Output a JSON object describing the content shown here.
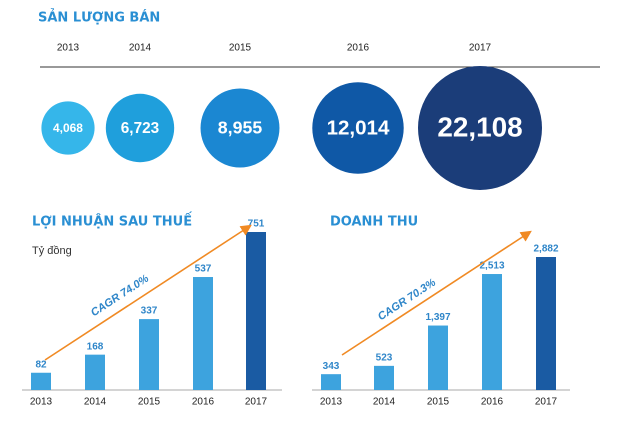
{
  "chart_data": [
    {
      "type": "bubble",
      "title": "SẢN LƯỢNG BÁN",
      "categories": [
        "2013",
        "2014",
        "2015",
        "2016",
        "2017"
      ],
      "values": [
        4068,
        6723,
        8955,
        12014,
        22108
      ],
      "value_labels": [
        "4,068",
        "6,723",
        "8,955",
        "12,014",
        "22,108"
      ],
      "colors": [
        "#35b6ea",
        "#1f9fdc",
        "#1b87d2",
        "#0f58a6",
        "#1b3d79"
      ]
    },
    {
      "type": "bar",
      "title": "LỢI NHUẬN SAU THUẾ",
      "subtitle": "Tỷ đồng",
      "annotation": "CAGR 74.0%",
      "categories": [
        "2013",
        "2014",
        "2015",
        "2016",
        "2017"
      ],
      "values": [
        82,
        168,
        337,
        537,
        751
      ],
      "colors": [
        "#3da3de",
        "#3da3de",
        "#3da3de",
        "#3da3de",
        "#1a5ba3"
      ]
    },
    {
      "type": "bar",
      "title": "DOANH THU",
      "annotation": "CAGR 70.3%",
      "categories": [
        "2013",
        "2014",
        "2015",
        "2016",
        "2017"
      ],
      "values": [
        343,
        523,
        1397,
        2513,
        2882
      ],
      "value_labels": [
        "343",
        "523",
        "1,397",
        "2,513",
        "2,882"
      ],
      "colors": [
        "#3da3de",
        "#3da3de",
        "#3da3de",
        "#3da3de",
        "#1a5ba3"
      ]
    }
  ]
}
